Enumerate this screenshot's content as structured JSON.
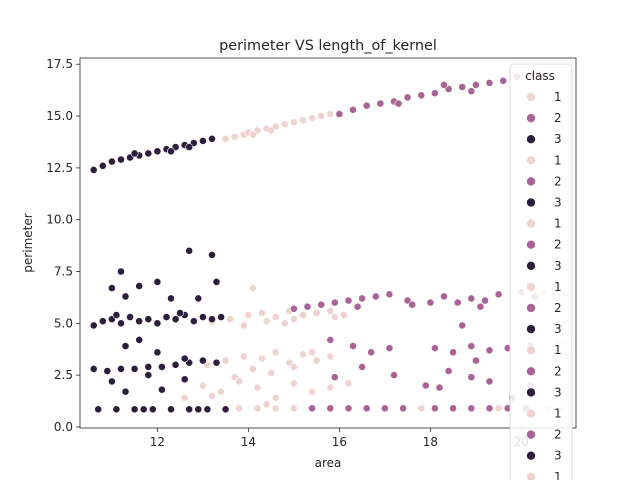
{
  "chart_data": {
    "type": "scatter",
    "title": "perimeter VS length_of_kernel",
    "xlabel": "area",
    "ylabel": "perimeter",
    "xlim": [
      10.3,
      21.2
    ],
    "ylim": [
      -0.05,
      17.8
    ],
    "xticks": [
      12,
      14,
      16,
      18,
      20
    ],
    "yticks": [
      0.0,
      2.5,
      5.0,
      7.5,
      10.0,
      12.5,
      15.0,
      17.5
    ],
    "xtick_labels": [
      "12",
      "14",
      "16",
      "18",
      "20"
    ],
    "ytick_labels": [
      "0.0",
      "2.5",
      "5.0",
      "7.5",
      "10.0",
      "12.5",
      "15.0",
      "17.5"
    ],
    "grid": false,
    "legend": {
      "title": "class",
      "placement": "right",
      "entries": [
        "1",
        "2",
        "3",
        "1",
        "2",
        "3",
        "1",
        "2",
        "3",
        "1",
        "2",
        "3",
        "1",
        "2",
        "3",
        "1",
        "2",
        "3",
        "1"
      ]
    },
    "colors": {
      "1": "#efd3cf",
      "2": "#a96396",
      "3": "#2d1e3e"
    },
    "series": [
      {
        "name": "1",
        "points": [
          [
            13.5,
            13.9
          ],
          [
            13.7,
            14.0
          ],
          [
            13.9,
            14.1
          ],
          [
            14.0,
            14.2
          ],
          [
            14.2,
            14.3
          ],
          [
            14.4,
            14.4
          ],
          [
            14.6,
            14.5
          ],
          [
            14.8,
            14.6
          ],
          [
            15.0,
            14.7
          ],
          [
            15.2,
            14.8
          ],
          [
            15.4,
            14.9
          ],
          [
            15.6,
            15.0
          ],
          [
            15.8,
            15.1
          ],
          [
            14.1,
            14.1
          ],
          [
            14.5,
            14.3
          ],
          [
            13.2,
            5.1
          ],
          [
            13.6,
            5.2
          ],
          [
            14.0,
            5.4
          ],
          [
            14.3,
            5.5
          ],
          [
            14.6,
            5.3
          ],
          [
            14.9,
            5.6
          ],
          [
            15.2,
            5.4
          ],
          [
            15.5,
            5.5
          ],
          [
            15.8,
            5.6
          ],
          [
            16.1,
            5.4
          ],
          [
            14.1,
            6.7
          ],
          [
            15.3,
            5.8
          ],
          [
            14.8,
            5.0
          ],
          [
            13.9,
            4.9
          ],
          [
            15.9,
            5.3
          ],
          [
            14.4,
            5.1
          ],
          [
            15.0,
            5.2
          ],
          [
            13.1,
            3.0
          ],
          [
            13.5,
            3.2
          ],
          [
            13.9,
            3.4
          ],
          [
            14.3,
            3.3
          ],
          [
            14.6,
            3.6
          ],
          [
            14.9,
            3.1
          ],
          [
            15.2,
            3.5
          ],
          [
            15.5,
            3.2
          ],
          [
            15.8,
            3.4
          ],
          [
            14.1,
            2.8
          ],
          [
            14.5,
            2.6
          ],
          [
            13.7,
            2.4
          ],
          [
            15.0,
            2.9
          ],
          [
            15.4,
            3.6
          ],
          [
            13.0,
            2.0
          ],
          [
            13.4,
            1.7
          ],
          [
            13.8,
            2.2
          ],
          [
            14.2,
            1.9
          ],
          [
            14.6,
            1.4
          ],
          [
            15.0,
            2.1
          ],
          [
            15.4,
            1.7
          ],
          [
            15.8,
            1.9
          ],
          [
            16.2,
            2.1
          ],
          [
            14.4,
            1.1
          ],
          [
            13.2,
            1.5
          ],
          [
            12.6,
            1.4
          ],
          [
            13.8,
            0.9
          ],
          [
            14.2,
            0.9
          ],
          [
            14.6,
            0.9
          ],
          [
            15.0,
            0.9
          ],
          [
            15.4,
            0.9
          ],
          [
            15.8,
            0.9
          ],
          [
            16.2,
            0.9
          ],
          [
            17.8,
            0.9
          ],
          [
            19.5,
            0.9
          ],
          [
            20.6,
            0.9
          ],
          [
            20.9,
            0.9
          ],
          [
            20.7,
            6.3
          ],
          [
            20.9,
            6.4
          ],
          [
            20.5,
            6.5
          ],
          [
            20.8,
            4.1
          ],
          [
            21.0,
            4.0
          ]
        ]
      },
      {
        "name": "2",
        "points": [
          [
            16.0,
            15.1
          ],
          [
            16.3,
            15.3
          ],
          [
            16.6,
            15.5
          ],
          [
            16.9,
            15.6
          ],
          [
            17.2,
            15.7
          ],
          [
            17.5,
            15.9
          ],
          [
            17.8,
            16.0
          ],
          [
            18.1,
            16.1
          ],
          [
            18.4,
            16.3
          ],
          [
            18.7,
            16.4
          ],
          [
            19.0,
            16.5
          ],
          [
            19.3,
            16.6
          ],
          [
            19.6,
            16.7
          ],
          [
            19.9,
            16.9
          ],
          [
            20.2,
            17.0
          ],
          [
            20.4,
            17.0
          ],
          [
            18.3,
            16.5
          ],
          [
            18.9,
            16.2
          ],
          [
            17.3,
            15.6
          ],
          [
            15.0,
            5.7
          ],
          [
            15.3,
            5.8
          ],
          [
            15.6,
            5.9
          ],
          [
            15.9,
            6.0
          ],
          [
            16.2,
            6.1
          ],
          [
            16.5,
            6.2
          ],
          [
            16.8,
            6.3
          ],
          [
            17.1,
            6.4
          ],
          [
            17.5,
            6.1
          ],
          [
            18.0,
            6.0
          ],
          [
            18.3,
            6.3
          ],
          [
            18.6,
            6.0
          ],
          [
            18.9,
            6.2
          ],
          [
            19.2,
            6.1
          ],
          [
            19.5,
            6.4
          ],
          [
            20.0,
            6.5
          ],
          [
            20.3,
            6.3
          ],
          [
            16.4,
            5.8
          ],
          [
            17.6,
            5.9
          ],
          [
            19.1,
            5.8
          ],
          [
            15.8,
            4.2
          ],
          [
            16.3,
            3.9
          ],
          [
            16.7,
            3.6
          ],
          [
            17.1,
            3.8
          ],
          [
            18.1,
            3.8
          ],
          [
            18.5,
            3.6
          ],
          [
            18.9,
            3.9
          ],
          [
            19.3,
            3.7
          ],
          [
            19.7,
            3.8
          ],
          [
            20.2,
            3.9
          ],
          [
            18.7,
            4.9
          ],
          [
            19.0,
            3.2
          ],
          [
            15.9,
            2.4
          ],
          [
            16.5,
            2.9
          ],
          [
            17.2,
            2.5
          ],
          [
            17.9,
            2.0
          ],
          [
            18.4,
            2.7
          ],
          [
            18.9,
            2.4
          ],
          [
            19.3,
            2.2
          ],
          [
            19.8,
            1.4
          ],
          [
            20.2,
            2.0
          ],
          [
            18.2,
            1.9
          ],
          [
            15.4,
            0.9
          ],
          [
            15.8,
            0.9
          ],
          [
            16.2,
            0.9
          ],
          [
            16.6,
            0.9
          ],
          [
            17.0,
            0.9
          ],
          [
            17.4,
            0.9
          ],
          [
            18.1,
            0.9
          ],
          [
            18.5,
            0.9
          ],
          [
            18.9,
            0.9
          ],
          [
            19.3,
            0.9
          ],
          [
            19.7,
            0.9
          ],
          [
            20.1,
            0.9
          ]
        ]
      },
      {
        "name": "3",
        "points": [
          [
            10.6,
            12.4
          ],
          [
            10.8,
            12.6
          ],
          [
            11.0,
            12.8
          ],
          [
            11.2,
            12.9
          ],
          [
            11.4,
            13.0
          ],
          [
            11.6,
            13.1
          ],
          [
            11.8,
            13.2
          ],
          [
            12.0,
            13.3
          ],
          [
            12.2,
            13.4
          ],
          [
            12.4,
            13.5
          ],
          [
            12.6,
            13.6
          ],
          [
            12.8,
            13.7
          ],
          [
            13.0,
            13.8
          ],
          [
            13.2,
            13.9
          ],
          [
            11.5,
            13.2
          ],
          [
            12.3,
            13.3
          ],
          [
            12.7,
            13.5
          ],
          [
            10.6,
            4.9
          ],
          [
            10.8,
            5.1
          ],
          [
            11.0,
            5.2
          ],
          [
            11.2,
            5.0
          ],
          [
            11.4,
            5.3
          ],
          [
            11.6,
            5.1
          ],
          [
            11.8,
            5.2
          ],
          [
            12.0,
            5.0
          ],
          [
            12.2,
            5.3
          ],
          [
            12.4,
            5.2
          ],
          [
            12.6,
            5.4
          ],
          [
            12.8,
            5.1
          ],
          [
            13.0,
            5.3
          ],
          [
            13.2,
            5.2
          ],
          [
            13.4,
            5.3
          ],
          [
            11.1,
            5.4
          ],
          [
            12.5,
            5.5
          ],
          [
            11.0,
            6.7
          ],
          [
            11.2,
            7.5
          ],
          [
            11.6,
            6.8
          ],
          [
            12.0,
            7.0
          ],
          [
            12.7,
            8.5
          ],
          [
            13.2,
            8.3
          ],
          [
            13.3,
            7.0
          ],
          [
            12.3,
            6.2
          ],
          [
            11.3,
            6.3
          ],
          [
            12.9,
            6.2
          ],
          [
            10.6,
            2.8
          ],
          [
            10.9,
            2.7
          ],
          [
            11.2,
            2.8
          ],
          [
            11.5,
            2.8
          ],
          [
            11.8,
            2.9
          ],
          [
            12.1,
            2.9
          ],
          [
            12.4,
            3.0
          ],
          [
            12.7,
            3.1
          ],
          [
            13.0,
            3.2
          ],
          [
            13.3,
            3.1
          ],
          [
            11.3,
            3.9
          ],
          [
            11.6,
            4.2
          ],
          [
            12.0,
            3.6
          ],
          [
            12.6,
            3.3
          ],
          [
            11.0,
            2.2
          ],
          [
            11.3,
            1.7
          ],
          [
            11.8,
            2.5
          ],
          [
            12.1,
            1.8
          ],
          [
            12.6,
            2.3
          ],
          [
            10.7,
            0.85
          ],
          [
            11.1,
            0.85
          ],
          [
            11.5,
            0.85
          ],
          [
            11.9,
            0.85
          ],
          [
            12.3,
            0.85
          ],
          [
            12.7,
            0.85
          ],
          [
            13.1,
            0.85
          ],
          [
            13.5,
            0.85
          ],
          [
            12.9,
            0.85
          ],
          [
            11.7,
            0.85
          ]
        ]
      }
    ]
  }
}
